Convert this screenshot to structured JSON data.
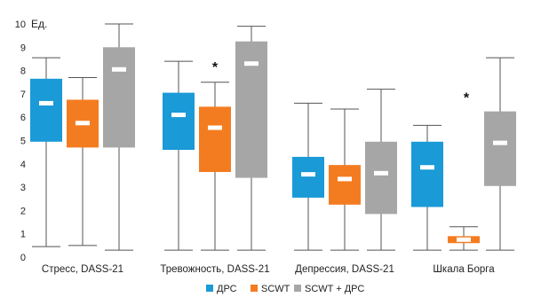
{
  "chart_data": {
    "type": "box",
    "y_unit_label": "Ед.",
    "ylim": [
      0,
      10
    ],
    "y_ticks": [
      "0",
      "1",
      "2",
      "3",
      "4",
      "5",
      "6",
      "7",
      "8",
      "9",
      "10"
    ],
    "grid": false,
    "legend_position": "bottom",
    "colors": {
      "ДРС": "#1A9AD6",
      "SCWT": "#F47C20",
      "SCWT + ДРС": "#A6A6A6"
    },
    "series_names": [
      "ДРС",
      "SCWT",
      "SCWT + ДРС"
    ],
    "categories": [
      {
        "label": "Стресс, DASS-21",
        "significance": "",
        "boxes": [
          {
            "series": "ДРС",
            "min": 0.45,
            "q1": 4.95,
            "median": 6.6,
            "q3": 7.65,
            "max": 8.55
          },
          {
            "series": "SCWT",
            "min": 0.5,
            "q1": 4.7,
            "median": 5.75,
            "q3": 6.75,
            "max": 7.7
          },
          {
            "series": "SCWT + ДРС",
            "min": 0.3,
            "q1": 4.7,
            "median": 8.05,
            "q3": 9.0,
            "max": 10.0
          }
        ]
      },
      {
        "label": "Тревожность, DASS-21",
        "significance": "*",
        "boxes": [
          {
            "series": "ДРС",
            "min": 0.3,
            "q1": 4.6,
            "median": 6.1,
            "q3": 7.05,
            "max": 8.4
          },
          {
            "series": "SCWT",
            "min": 0.3,
            "q1": 3.65,
            "median": 5.55,
            "q3": 6.45,
            "max": 7.5
          },
          {
            "series": "SCWT + ДРС",
            "min": 0.3,
            "q1": 3.4,
            "median": 8.3,
            "q3": 9.25,
            "max": 9.9
          }
        ]
      },
      {
        "label": "Депрессия, DASS-21",
        "significance": "",
        "boxes": [
          {
            "series": "ДРС",
            "min": 0.3,
            "q1": 2.55,
            "median": 3.55,
            "q3": 4.3,
            "max": 6.6
          },
          {
            "series": "SCWT",
            "min": 0.3,
            "q1": 2.25,
            "median": 3.35,
            "q3": 3.95,
            "max": 6.35
          },
          {
            "series": "SCWT + ДРС",
            "min": 0.3,
            "q1": 1.85,
            "median": 3.6,
            "q3": 4.95,
            "max": 7.2
          }
        ]
      },
      {
        "label": "Шкала Борга",
        "significance": "*",
        "boxes": [
          {
            "series": "ДРС",
            "min": 0.3,
            "q1": 2.15,
            "median": 3.85,
            "q3": 4.95,
            "max": 5.65
          },
          {
            "series": "SCWT",
            "min": 0.3,
            "q1": 0.6,
            "median": 0.75,
            "q3": 0.9,
            "max": 1.3
          },
          {
            "series": "SCWT + ДРС",
            "min": 0.3,
            "q1": 3.05,
            "median": 4.9,
            "q3": 6.25,
            "max": 8.55
          }
        ]
      }
    ]
  }
}
